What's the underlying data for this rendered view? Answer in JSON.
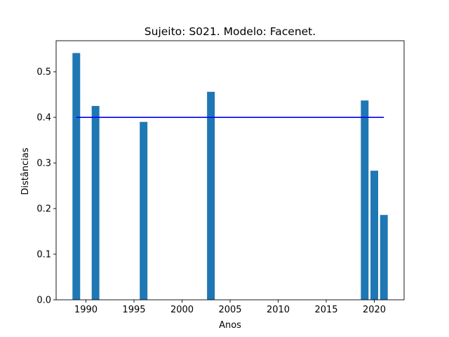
{
  "chart_data": {
    "type": "bar",
    "title": "Sujeito: S021. Modelo: Facenet.",
    "xlabel": "Anos",
    "ylabel": "Distâncias",
    "x": [
      1989,
      1991,
      1996,
      2003,
      2019,
      2020,
      2021
    ],
    "values": [
      0.541,
      0.425,
      0.39,
      0.456,
      0.437,
      0.283,
      0.186
    ],
    "bar_width": 0.8,
    "bar_color": "#1f77b4",
    "threshold": {
      "value": 0.4,
      "x_start": 1989,
      "x_end": 2021,
      "color": "#0000ff"
    },
    "xlim": [
      1986.9,
      2023.1
    ],
    "ylim": [
      0,
      0.568
    ],
    "xticks": [
      1990,
      1995,
      2000,
      2005,
      2010,
      2015,
      2020
    ],
    "yticks": [
      0.0,
      0.1,
      0.2,
      0.3,
      0.4,
      0.5
    ],
    "xtick_labels": [
      "1990",
      "1995",
      "2000",
      "2005",
      "2010",
      "2015",
      "2020"
    ],
    "ytick_labels": [
      "0.0",
      "0.1",
      "0.2",
      "0.3",
      "0.4",
      "0.5"
    ],
    "grid": false,
    "legend": "none"
  }
}
